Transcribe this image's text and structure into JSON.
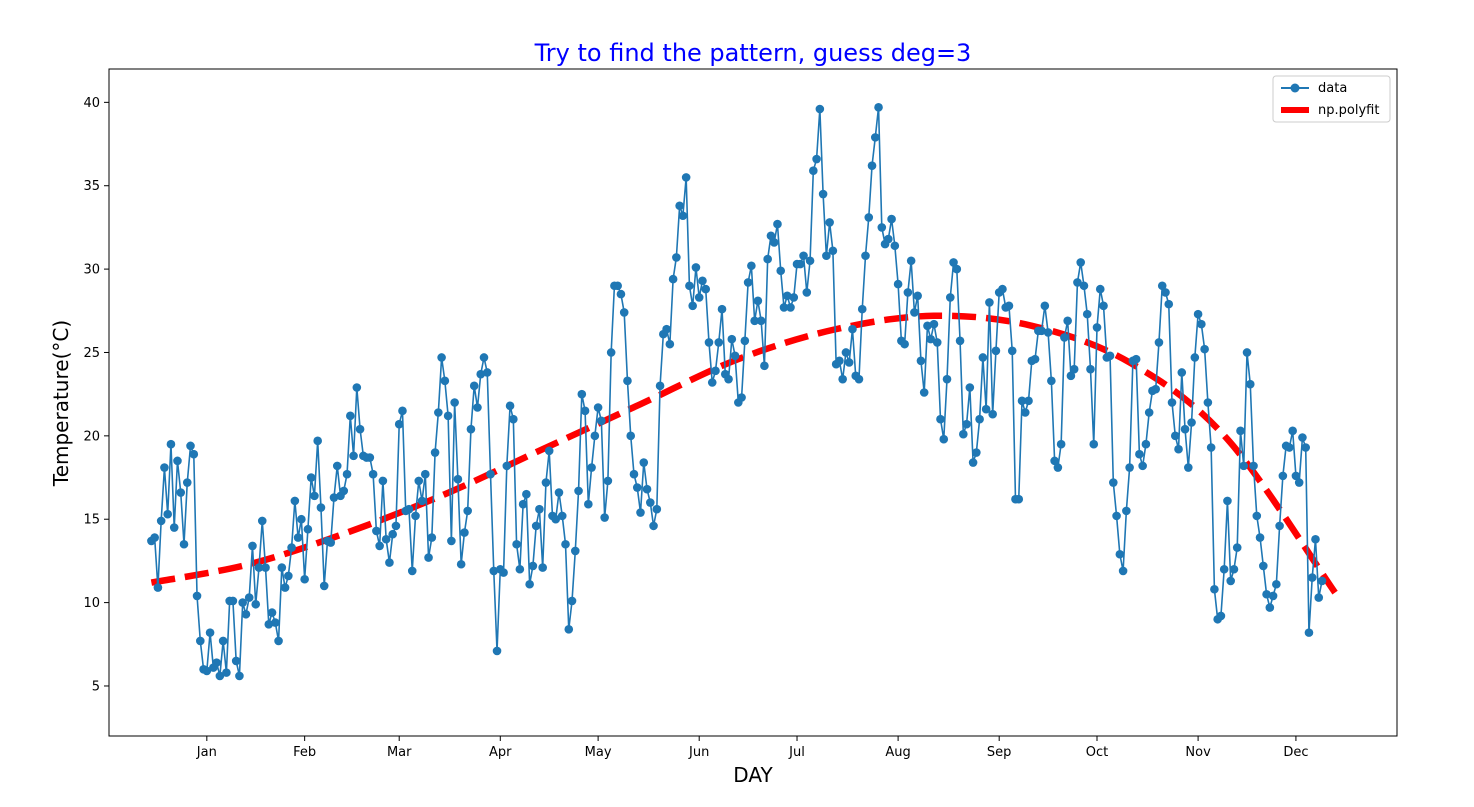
{
  "chart_data": {
    "type": "line",
    "title": "Try to find the pattern, guess deg=3",
    "title_color": "#0000ff",
    "xlabel": "DAY",
    "ylabel": "Temperature(°C)",
    "xlim": [
      -15,
      380
    ],
    "ylim": [
      2,
      42
    ],
    "grid": false,
    "legend_position": "upper right",
    "x_tick_labels": [
      {
        "day": 15,
        "label": "Jan"
      },
      {
        "day": 45,
        "label": "Feb"
      },
      {
        "day": 74,
        "label": "Mar"
      },
      {
        "day": 105,
        "label": "Apr"
      },
      {
        "day": 135,
        "label": "May"
      },
      {
        "day": 166,
        "label": "Jun"
      },
      {
        "day": 196,
        "label": "Jul"
      },
      {
        "day": 227,
        "label": "Aug"
      },
      {
        "day": 258,
        "label": "Sep"
      },
      {
        "day": 288,
        "label": "Oct"
      },
      {
        "day": 319,
        "label": "Nov"
      },
      {
        "day": 349,
        "label": "Dec"
      }
    ],
    "y_ticks": [
      5,
      10,
      15,
      20,
      25,
      30,
      35,
      40
    ],
    "series": [
      {
        "name": "data",
        "style": "line-with-markers",
        "color": "#1f77b4",
        "x_start": -2,
        "values": [
          13.7,
          13.9,
          10.9,
          14.9,
          18.1,
          15.3,
          19.5,
          14.5,
          18.5,
          16.6,
          13.5,
          17.2,
          19.4,
          18.9,
          10.4,
          7.7,
          6.0,
          5.9,
          8.2,
          6.1,
          6.4,
          5.6,
          7.7,
          5.8,
          10.1,
          10.1,
          6.5,
          5.6,
          10.0,
          9.3,
          10.3,
          13.4,
          9.9,
          12.1,
          14.9,
          12.1,
          8.7,
          9.4,
          8.8,
          7.7,
          12.1,
          10.9,
          11.6,
          13.3,
          16.1,
          13.9,
          15.0,
          11.4,
          14.4,
          17.5,
          16.4,
          19.7,
          15.7,
          11.0,
          13.7,
          13.6,
          16.3,
          18.2,
          16.4,
          16.7,
          17.7,
          21.2,
          18.8,
          22.9,
          20.4,
          18.8,
          18.7,
          18.7,
          17.7,
          14.3,
          13.4,
          17.3,
          13.8,
          12.4,
          14.1,
          14.6,
          20.7,
          21.5,
          15.5,
          15.6,
          11.9,
          15.2,
          17.3,
          16.1,
          17.7,
          12.7,
          13.9,
          19.0,
          21.4,
          24.7,
          23.3,
          21.2,
          13.7,
          22.0,
          17.4,
          12.3,
          14.2,
          15.5,
          20.4,
          23.0,
          21.7,
          23.7,
          24.7,
          23.8,
          17.7,
          11.9,
          7.1,
          12.0,
          11.8,
          18.2,
          21.8,
          21.0,
          13.5,
          12.0,
          15.9,
          16.5,
          11.1,
          12.2,
          14.6,
          15.6,
          12.1,
          17.2,
          19.1,
          15.2,
          15.0,
          16.6,
          15.2,
          13.5,
          8.4,
          10.1,
          13.1,
          16.7,
          22.5,
          21.5,
          15.9,
          18.1,
          20.0,
          21.7,
          20.9,
          15.1,
          17.3,
          25.0,
          29.0,
          29.0,
          28.5,
          27.4,
          23.3,
          20.0,
          17.7,
          16.9,
          15.4,
          18.4,
          16.8,
          16.0,
          14.6,
          15.6,
          23.0,
          26.1,
          26.4,
          25.5,
          29.4,
          30.7,
          33.8,
          33.2,
          35.5,
          29.0,
          27.8,
          30.1,
          28.3,
          29.3,
          28.8,
          25.6,
          23.2,
          23.9,
          25.6,
          27.6,
          23.7,
          23.4,
          25.8,
          24.8,
          22.0,
          22.3,
          25.7,
          29.2,
          30.2,
          26.9,
          28.1,
          26.9,
          24.2,
          30.6,
          32.0,
          31.6,
          32.7,
          29.9,
          27.7,
          28.4,
          27.7,
          28.3,
          30.3,
          30.3,
          30.8,
          28.6,
          30.5,
          35.9,
          36.6,
          39.6,
          34.5,
          30.8,
          32.8,
          31.1,
          24.3,
          24.5,
          23.4,
          25.0,
          24.4,
          26.4,
          23.6,
          23.4,
          27.6,
          30.8,
          33.1,
          36.2,
          37.9,
          39.7,
          32.5,
          31.5,
          31.8,
          33.0,
          31.4,
          29.1,
          25.7,
          25.5,
          28.6,
          30.5,
          27.4,
          28.4,
          24.5,
          22.6,
          26.6,
          25.8,
          26.7,
          25.6,
          21.0,
          19.8,
          23.4,
          28.3,
          30.4,
          30.0,
          25.7,
          20.1,
          20.7,
          22.9,
          18.4,
          19.0,
          21.0,
          24.7,
          21.6,
          28.0,
          21.3,
          25.1,
          28.6,
          28.8,
          27.7,
          27.8,
          25.1,
          16.2,
          16.2,
          22.1,
          21.4,
          22.1,
          24.5,
          24.6,
          26.3,
          26.3,
          27.8,
          26.2,
          23.3,
          18.5,
          18.1,
          19.5,
          25.9,
          26.9,
          23.6,
          24.0,
          29.2,
          30.4,
          29.0,
          27.3,
          24.0,
          19.5,
          26.5,
          28.8,
          27.8,
          24.7,
          24.8,
          17.2,
          15.2,
          12.9,
          11.9,
          15.5,
          18.1,
          24.5,
          24.6,
          18.9,
          18.2,
          19.5,
          21.4,
          22.7,
          22.8,
          25.6,
          29.0,
          28.6,
          27.9,
          22.0,
          20.0,
          19.2,
          23.8,
          20.4,
          18.1,
          20.8,
          24.7,
          27.3,
          26.7,
          25.2,
          22.0,
          19.3,
          10.8,
          9.0,
          9.2,
          12.0,
          16.1,
          11.3,
          12.0,
          13.3,
          20.3,
          18.2,
          25.0,
          23.1,
          18.2,
          15.2,
          13.9,
          12.2,
          10.5,
          9.7,
          10.4,
          11.1,
          14.6,
          17.6,
          19.4,
          19.3,
          20.3,
          17.6,
          17.2,
          19.9,
          19.3,
          8.2,
          11.5,
          13.8,
          10.3,
          11.3
        ]
      },
      {
        "name": "np.polyfit",
        "style": "dashed",
        "color": "#ff0000",
        "x": [
          -2,
          28,
          58,
          88,
          118,
          148,
          178,
          208,
          238,
          268,
          298,
          328,
          361
        ],
        "values": [
          11.2,
          12.3,
          14.2,
          16.5,
          19.2,
          21.9,
          24.6,
          26.4,
          27.2,
          26.6,
          24.4,
          19.8,
          10.6
        ]
      }
    ]
  }
}
